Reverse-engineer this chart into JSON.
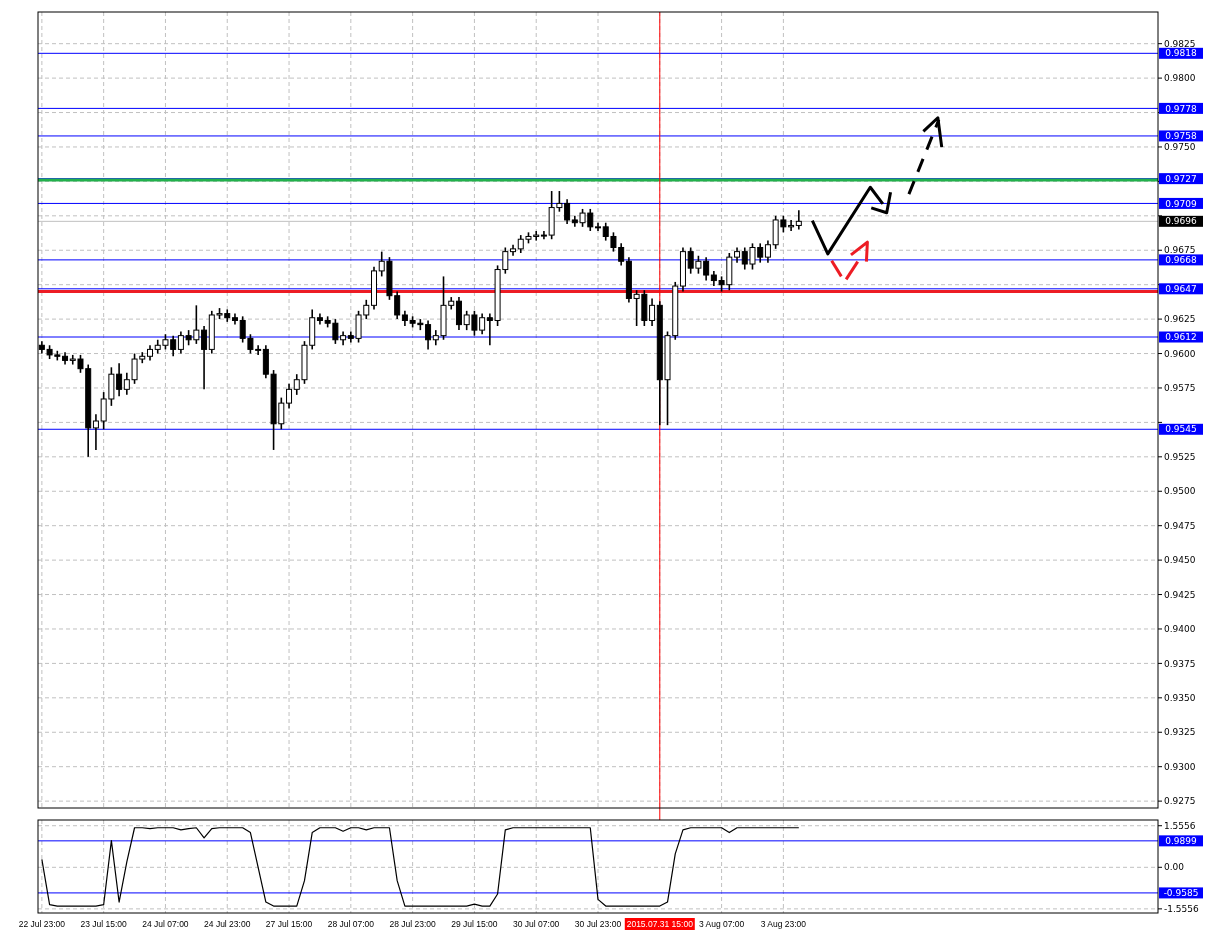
{
  "chart_data": [
    {
      "type": "candlestick",
      "categories": [
        "22 Jul 23:00",
        null,
        null,
        null,
        null,
        null,
        null,
        null,
        "23 Jul 15:00",
        null,
        null,
        null,
        null,
        null,
        null,
        null,
        "24 Jul 07:00",
        null,
        null,
        null,
        null,
        null,
        null,
        null,
        "24 Jul 23:00",
        null,
        null,
        null,
        null,
        null,
        null,
        null,
        "27 Jul 15:00",
        null,
        null,
        null,
        null,
        null,
        null,
        null,
        "28 Jul 07:00",
        null,
        null,
        null,
        null,
        null,
        null,
        null,
        "28 Jul 23:00",
        null,
        null,
        null,
        null,
        null,
        null,
        null,
        "29 Jul 15:00",
        null,
        null,
        null,
        null,
        null,
        null,
        null,
        "30 Jul 07:00",
        null,
        null,
        null,
        null,
        null,
        null,
        null,
        "30 Jul 23:00",
        null,
        null,
        null,
        null,
        null,
        null,
        null,
        "31 Jul 15:00",
        null,
        null,
        null,
        null,
        null,
        null,
        null,
        "3 Aug 07:00",
        null,
        null,
        null,
        null,
        null,
        null,
        null,
        "3 Aug 23:00",
        null,
        null,
        null,
        null,
        null,
        null,
        null,
        null,
        null,
        null,
        null,
        null,
        null,
        null,
        null,
        null,
        null,
        null,
        null,
        null,
        null,
        null,
        null,
        null,
        null,
        null,
        null,
        null,
        null,
        null,
        null,
        null,
        null,
        null,
        null,
        null,
        null,
        null,
        null,
        null,
        null,
        null,
        null,
        null,
        null,
        null,
        null,
        null
      ],
      "ohlc": [
        [
          0.9606,
          0.9609,
          0.96,
          0.9603
        ],
        [
          0.9603,
          0.9606,
          0.9596,
          0.9599
        ],
        [
          0.9599,
          0.9602,
          0.9595,
          0.9598
        ],
        [
          0.9598,
          0.9601,
          0.9592,
          0.9595
        ],
        [
          0.9595,
          0.9599,
          0.9592,
          0.9596
        ],
        [
          0.9596,
          0.9599,
          0.9586,
          0.9589
        ],
        [
          0.9589,
          0.9592,
          0.9525,
          0.9546
        ],
        [
          0.9546,
          0.9556,
          0.953,
          0.9551
        ],
        [
          0.9551,
          0.9572,
          0.9545,
          0.9567
        ],
        [
          0.9567,
          0.959,
          0.9562,
          0.9585
        ],
        [
          0.9585,
          0.9593,
          0.9569,
          0.9574
        ],
        [
          0.9574,
          0.9586,
          0.957,
          0.9581
        ],
        [
          0.9581,
          0.96,
          0.9578,
          0.9596
        ],
        [
          0.9596,
          0.9601,
          0.9593,
          0.9598
        ],
        [
          0.9598,
          0.9606,
          0.9595,
          0.9603
        ],
        [
          0.9603,
          0.961,
          0.96,
          0.9606
        ],
        [
          0.9606,
          0.9614,
          0.9603,
          0.961
        ],
        [
          0.961,
          0.9613,
          0.9598,
          0.9603
        ],
        [
          0.9603,
          0.9616,
          0.96,
          0.9613
        ],
        [
          0.9613,
          0.9617,
          0.9606,
          0.961
        ],
        [
          0.961,
          0.9635,
          0.9607,
          0.9617
        ],
        [
          0.9617,
          0.962,
          0.9574,
          0.9603
        ],
        [
          0.9603,
          0.9631,
          0.96,
          0.9628
        ],
        [
          0.9628,
          0.9633,
          0.9625,
          0.9629
        ],
        [
          0.9629,
          0.9632,
          0.9623,
          0.9626
        ],
        [
          0.9626,
          0.9629,
          0.9621,
          0.9624
        ],
        [
          0.9624,
          0.9627,
          0.9608,
          0.9611
        ],
        [
          0.9611,
          0.9614,
          0.96,
          0.9603
        ],
        [
          0.9603,
          0.9606,
          0.9599,
          0.9603
        ],
        [
          0.9603,
          0.9606,
          0.9582,
          0.9585
        ],
        [
          0.9585,
          0.9588,
          0.953,
          0.9549
        ],
        [
          0.9549,
          0.9568,
          0.9545,
          0.9564
        ],
        [
          0.9564,
          0.9578,
          0.956,
          0.9574
        ],
        [
          0.9574,
          0.9585,
          0.957,
          0.9581
        ],
        [
          0.9581,
          0.9609,
          0.9578,
          0.9606
        ],
        [
          0.9606,
          0.9632,
          0.9603,
          0.9626
        ],
        [
          0.9626,
          0.9629,
          0.9621,
          0.9624
        ],
        [
          0.9624,
          0.9627,
          0.9619,
          0.9622
        ],
        [
          0.9622,
          0.9625,
          0.9607,
          0.961
        ],
        [
          0.961,
          0.9616,
          0.9606,
          0.9613
        ],
        [
          0.9613,
          0.9616,
          0.9608,
          0.9611
        ],
        [
          0.9611,
          0.9631,
          0.9608,
          0.9628
        ],
        [
          0.9628,
          0.9639,
          0.9625,
          0.9635
        ],
        [
          0.9635,
          0.9663,
          0.9632,
          0.966
        ],
        [
          0.966,
          0.9674,
          0.9656,
          0.9667
        ],
        [
          0.9667,
          0.967,
          0.9639,
          0.9642
        ],
        [
          0.9642,
          0.9645,
          0.9625,
          0.9628
        ],
        [
          0.9628,
          0.9631,
          0.962,
          0.9624
        ],
        [
          0.9624,
          0.9627,
          0.9619,
          0.9622
        ],
        [
          0.9622,
          0.9625,
          0.9617,
          0.9621
        ],
        [
          0.9621,
          0.9624,
          0.9603,
          0.961
        ],
        [
          0.961,
          0.9617,
          0.9606,
          0.9613
        ],
        [
          0.9613,
          0.9656,
          0.961,
          0.9635
        ],
        [
          0.9635,
          0.9641,
          0.9632,
          0.9638
        ],
        [
          0.9638,
          0.9641,
          0.9617,
          0.9621
        ],
        [
          0.9621,
          0.9631,
          0.9617,
          0.9628
        ],
        [
          0.9628,
          0.9631,
          0.9613,
          0.9617
        ],
        [
          0.9617,
          0.9629,
          0.9614,
          0.9626
        ],
        [
          0.9626,
          0.9629,
          0.9606,
          0.9624
        ],
        [
          0.9624,
          0.9664,
          0.962,
          0.9661
        ],
        [
          0.9661,
          0.9677,
          0.9658,
          0.9674
        ],
        [
          0.9674,
          0.9679,
          0.9671,
          0.9676
        ],
        [
          0.9676,
          0.9686,
          0.9673,
          0.9683
        ],
        [
          0.9683,
          0.9688,
          0.968,
          0.9685
        ],
        [
          0.9685,
          0.9689,
          0.9682,
          0.9686
        ],
        [
          0.9686,
          0.9689,
          0.9683,
          0.9686
        ],
        [
          0.9686,
          0.9718,
          0.9683,
          0.9706
        ],
        [
          0.9706,
          0.9718,
          0.9703,
          0.9709
        ],
        [
          0.9709,
          0.9712,
          0.9694,
          0.9697
        ],
        [
          0.9697,
          0.97,
          0.9692,
          0.9695
        ],
        [
          0.9695,
          0.9705,
          0.9692,
          0.9702
        ],
        [
          0.9702,
          0.9705,
          0.9689,
          0.9692
        ],
        [
          0.9692,
          0.9695,
          0.9689,
          0.9692
        ],
        [
          0.9692,
          0.9695,
          0.9682,
          0.9685
        ],
        [
          0.9685,
          0.9688,
          0.9674,
          0.9677
        ],
        [
          0.9677,
          0.968,
          0.9664,
          0.9667
        ],
        [
          0.9667,
          0.967,
          0.9637,
          0.964
        ],
        [
          0.964,
          0.9646,
          0.962,
          0.9643
        ],
        [
          0.9643,
          0.9646,
          0.962,
          0.9624
        ],
        [
          0.9624,
          0.964,
          0.962,
          0.9635
        ],
        [
          0.9635,
          0.9638,
          0.9548,
          0.9581
        ],
        [
          0.9581,
          0.9616,
          0.9548,
          0.9613
        ],
        [
          0.9613,
          0.9652,
          0.961,
          0.9649
        ],
        [
          0.9649,
          0.9677,
          0.9645,
          0.9674
        ],
        [
          0.9674,
          0.9677,
          0.9658,
          0.9662
        ],
        [
          0.9662,
          0.9671,
          0.9658,
          0.9667
        ],
        [
          0.9667,
          0.967,
          0.9653,
          0.9657
        ],
        [
          0.9657,
          0.966,
          0.9649,
          0.9653
        ],
        [
          0.9653,
          0.9656,
          0.9645,
          0.965
        ],
        [
          0.965,
          0.9673,
          0.9646,
          0.967
        ],
        [
          0.967,
          0.9677,
          0.9666,
          0.9674
        ],
        [
          0.9674,
          0.9677,
          0.9661,
          0.9665
        ],
        [
          0.9665,
          0.968,
          0.9661,
          0.9677
        ],
        [
          0.9677,
          0.968,
          0.9666,
          0.967
        ],
        [
          0.967,
          0.9682,
          0.9666,
          0.9679
        ],
        [
          0.9679,
          0.97,
          0.9676,
          0.9697
        ],
        [
          0.9697,
          0.97,
          0.9688,
          0.9692
        ],
        [
          0.9692,
          0.9697,
          0.9689,
          0.9693
        ],
        [
          0.9693,
          0.9704,
          0.969,
          0.9696
        ],
        null,
        null,
        null,
        null,
        null,
        null,
        null,
        null,
        null,
        null,
        null,
        null,
        null,
        null,
        null,
        null,
        null,
        null,
        null,
        null,
        null,
        null,
        null,
        null,
        null,
        null,
        null,
        null,
        null,
        null,
        null,
        null,
        null,
        null,
        null,
        null,
        null,
        null,
        null,
        null,
        null,
        null,
        null,
        null,
        null,
        null
      ],
      "ylim": [
        0.927,
        0.9848
      ],
      "yticks": [
        0.9275,
        {
          "value": 0.93,
          "label": "0.9300"
        },
        0.9325,
        {
          "value": 0.935,
          "label": "0.9350"
        },
        0.9375,
        {
          "value": 0.94,
          "label": "0.9400"
        },
        0.9425,
        {
          "value": 0.945,
          "label": "0.9450"
        },
        0.9475,
        {
          "value": 0.95,
          "label": "0.9500"
        },
        0.9525,
        {
          "value": 0.955,
          "label": null
        },
        0.9575,
        {
          "value": 0.96,
          "label": "0.9600"
        },
        0.9625,
        {
          "value": 0.965,
          "label": null
        },
        0.9675,
        {
          "value": 0.97,
          "label": null
        },
        {
          "value": 0.9725,
          "label": null
        },
        {
          "value": 0.975,
          "label": "0.9750"
        },
        {
          "value": 0.9775,
          "label": null
        },
        {
          "value": 0.98,
          "label": "0.9800"
        },
        0.9825
      ],
      "ref_lines": [
        {
          "axis": "y",
          "value": 0.9818,
          "label": "0.9818",
          "color": "#0000ff"
        },
        {
          "axis": "y",
          "value": 0.9778,
          "label": "0.9778",
          "color": "#0000ff"
        },
        {
          "axis": "y",
          "value": 0.9758,
          "label": "0.9758",
          "color": "#0000ff"
        },
        {
          "axis": "y",
          "value": 0.9727,
          "label": "0.9727",
          "color": "#0000ff"
        },
        {
          "axis": "y",
          "value": 0.9709,
          "label": "0.9709",
          "color": "#0000ff"
        },
        {
          "axis": "y",
          "value": 0.9696,
          "label": "0.9696",
          "color": "#c0c0c0"
        },
        {
          "axis": "y",
          "value": 0.9668,
          "label": "0.9668",
          "color": "#0000ff"
        },
        {
          "axis": "y",
          "value": 0.9647,
          "label": "0.9647",
          "color": "#0000ff"
        },
        {
          "axis": "y",
          "value": 0.9612,
          "label": "0.9612",
          "color": "#0000ff"
        },
        {
          "axis": "y",
          "value": 0.9545,
          "label": "0.9545",
          "color": "#0000ff"
        },
        {
          "axis": "y",
          "value": 0.9726,
          "color": "#22b14c"
        },
        {
          "axis": "y",
          "value": 0.9645,
          "color": "#ed1c24"
        },
        {
          "axis": "x",
          "value": "31 Jul 15:00",
          "label": "2015.07.31 15:00",
          "color": "#ff0000"
        }
      ],
      "grid": true,
      "tick_labels": "y"
    },
    {
      "type": "line",
      "categories": [
        "22 Jul 23:00",
        null,
        null,
        null,
        null,
        null,
        null,
        null,
        "23 Jul 15:00",
        null,
        null,
        null,
        null,
        null,
        null,
        null,
        "24 Jul 07:00",
        null,
        null,
        null,
        null,
        null,
        null,
        null,
        "24 Jul 23:00",
        null,
        null,
        null,
        null,
        null,
        null,
        null,
        "27 Jul 15:00",
        null,
        null,
        null,
        null,
        null,
        null,
        null,
        "28 Jul 07:00",
        null,
        null,
        null,
        null,
        null,
        null,
        null,
        "28 Jul 23:00",
        null,
        null,
        null,
        null,
        null,
        null,
        null,
        "29 Jul 15:00",
        null,
        null,
        null,
        null,
        null,
        null,
        null,
        "30 Jul 07:00",
        null,
        null,
        null,
        null,
        null,
        null,
        null,
        "30 Jul 23:00",
        null,
        null,
        null,
        null,
        null,
        null,
        null,
        null,
        null,
        null,
        null,
        null,
        null,
        null,
        null,
        "3 Aug 07:00",
        null,
        null,
        null,
        null,
        null,
        null,
        null,
        "3 Aug 23:00",
        null,
        null,
        null,
        null,
        null,
        null,
        null,
        null,
        null,
        null,
        null,
        null,
        null,
        null,
        null,
        null,
        null,
        null,
        null,
        null,
        null,
        null,
        null,
        null,
        null,
        null,
        null,
        null,
        null,
        null,
        null,
        null,
        null,
        null,
        null,
        null,
        null,
        null,
        null,
        null,
        null,
        null,
        null,
        null,
        null,
        null,
        null,
        null
      ],
      "values": [
        0.3,
        -1.4,
        -1.45,
        -1.45,
        -1.45,
        -1.45,
        -1.45,
        -1.45,
        -1.4,
        1.0,
        -1.3,
        0.2,
        1.48,
        1.48,
        1.45,
        1.48,
        1.48,
        1.48,
        1.4,
        1.45,
        1.48,
        1.1,
        1.45,
        1.48,
        1.48,
        1.48,
        1.48,
        1.3,
        0.0,
        -1.3,
        -1.45,
        -1.45,
        -1.45,
        -1.45,
        -0.5,
        1.3,
        1.48,
        1.48,
        1.48,
        1.35,
        1.48,
        1.48,
        1.4,
        1.48,
        1.48,
        1.48,
        -0.5,
        -1.45,
        -1.45,
        -1.45,
        -1.45,
        -1.45,
        -1.45,
        -1.45,
        -1.45,
        -1.45,
        -1.38,
        -1.45,
        -1.45,
        -1.0,
        1.4,
        1.48,
        1.48,
        1.48,
        1.48,
        1.48,
        1.48,
        1.48,
        1.48,
        1.48,
        1.48,
        1.48,
        -1.2,
        -1.45,
        -1.45,
        -1.45,
        -1.45,
        -1.45,
        -1.45,
        -1.45,
        -1.45,
        -1.3,
        0.5,
        1.4,
        1.48,
        1.48,
        1.48,
        1.48,
        1.48,
        1.3,
        1.48,
        1.48,
        1.48,
        1.48,
        1.48,
        1.48,
        1.48,
        1.48,
        1.48,
        null,
        null,
        null,
        null,
        null,
        null,
        null,
        null,
        null,
        null,
        null,
        null,
        null,
        null,
        null,
        null,
        null,
        null,
        null,
        null,
        null,
        null,
        null,
        null,
        null,
        null,
        null,
        null,
        null,
        null,
        null,
        null,
        null,
        null,
        null,
        null,
        null,
        null,
        null,
        null,
        null,
        null,
        null,
        null,
        null,
        null
      ],
      "color": "#000000",
      "ylim": [
        -1.71,
        1.77
      ],
      "yticks": [
        -1.5556,
        {
          "value": 0,
          "label": "0.00"
        },
        1.5556
      ],
      "ref_lines": [
        {
          "axis": "y",
          "value": 0.9899,
          "label": "0.9899",
          "color": "#0000ff"
        },
        {
          "axis": "y",
          "value": -0.9585,
          "label": "-0.9585",
          "color": "#0000ff"
        }
      ],
      "grid": true
    }
  ]
}
